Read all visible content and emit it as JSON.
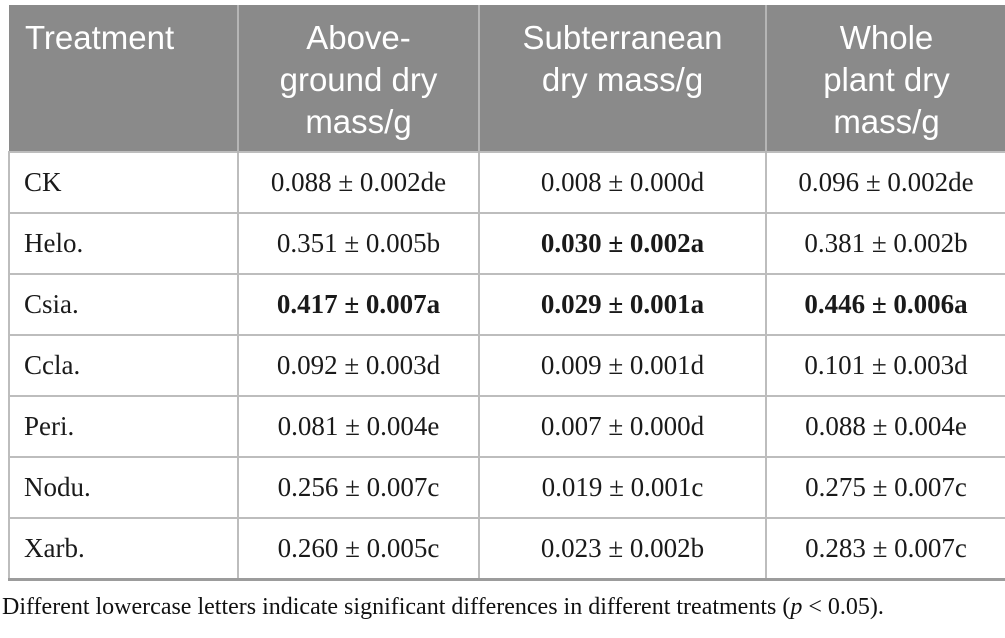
{
  "table": {
    "columns": [
      {
        "id": "treatment",
        "label": "Treatment"
      },
      {
        "id": "above_ground",
        "label": "Above-\nground dry\nmass/g"
      },
      {
        "id": "subterranean",
        "label": "Subterranean\ndry mass/g"
      },
      {
        "id": "whole_plant",
        "label": "Whole\nplant dry\nmass/g"
      }
    ],
    "rows": [
      {
        "treatment": "CK",
        "cells": [
          {
            "text": "0.088 ± 0.002de",
            "bold": false
          },
          {
            "text": "0.008 ± 0.000d",
            "bold": false
          },
          {
            "text": "0.096 ± 0.002de",
            "bold": false
          }
        ]
      },
      {
        "treatment": "Helo.",
        "cells": [
          {
            "text": "0.351 ± 0.005b",
            "bold": false
          },
          {
            "text": "0.030 ± 0.002a",
            "bold": true
          },
          {
            "text": "0.381 ± 0.002b",
            "bold": false
          }
        ]
      },
      {
        "treatment": "Csia.",
        "cells": [
          {
            "text": "0.417 ± 0.007a",
            "bold": true
          },
          {
            "text": "0.029 ± 0.001a",
            "bold": true
          },
          {
            "text": "0.446 ± 0.006a",
            "bold": true
          }
        ]
      },
      {
        "treatment": "Ccla.",
        "cells": [
          {
            "text": "0.092 ± 0.003d",
            "bold": false
          },
          {
            "text": "0.009 ± 0.001d",
            "bold": false
          },
          {
            "text": "0.101 ± 0.003d",
            "bold": false
          }
        ]
      },
      {
        "treatment": "Peri.",
        "cells": [
          {
            "text": "0.081 ± 0.004e",
            "bold": false
          },
          {
            "text": "0.007 ± 0.000d",
            "bold": false
          },
          {
            "text": "0.088 ± 0.004e",
            "bold": false
          }
        ]
      },
      {
        "treatment": "Nodu.",
        "cells": [
          {
            "text": "0.256 ± 0.007c",
            "bold": false
          },
          {
            "text": "0.019 ± 0.001c",
            "bold": false
          },
          {
            "text": "0.275 ± 0.007c",
            "bold": false
          }
        ]
      },
      {
        "treatment": "Xarb.",
        "cells": [
          {
            "text": "0.260 ± 0.005c",
            "bold": false
          },
          {
            "text": "0.023 ± 0.002b",
            "bold": false
          },
          {
            "text": "0.283 ± 0.007c",
            "bold": false
          }
        ]
      }
    ]
  },
  "footnote": {
    "prefix": "Different lowercase letters indicate significant differences in different treatments (",
    "p_symbol": "p",
    "suffix": " < 0.05)."
  },
  "colors": {
    "header_bg": "#8a8a8a",
    "header_text": "#ffffff",
    "body_text": "#1a1a1a",
    "grid_line": "#bdbdbd",
    "table_bottom_border": "#9c9c9c"
  }
}
